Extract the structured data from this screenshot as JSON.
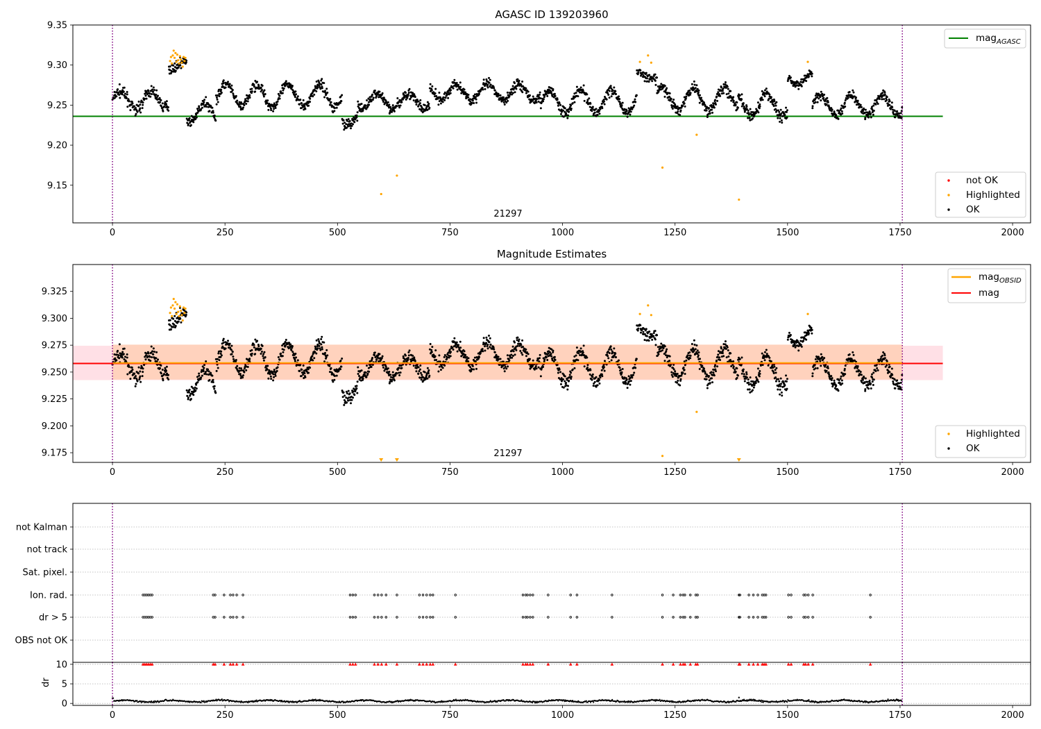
{
  "figure": {
    "colors": {
      "ok": "#000000",
      "highlighted": "#ffa500",
      "not_ok": "#ff0000",
      "agasc_line": "#008000",
      "mag_line": "#ff0000",
      "mag_obsid_line": "#ffa500",
      "band_outer": "#ffe0e6",
      "band_inner": "#ffd2bd",
      "obs_boundary": "#800080",
      "grid": "#b0b0b0"
    }
  },
  "chart_data": [
    {
      "type": "scatter",
      "title": "AGASC ID 139203960",
      "annotation": "21297",
      "xlim": [
        -88,
        2040
      ],
      "ylim": [
        9.103,
        9.35
      ],
      "xticks": [
        0,
        250,
        500,
        750,
        1000,
        1250,
        1500,
        1750,
        2000
      ],
      "yticks": [
        "9.15",
        "9.20",
        "9.25",
        "9.30",
        "9.35"
      ],
      "obs_boundaries": [
        0,
        1755
      ],
      "mag_agasc": 9.236,
      "mag_line_x_range": [
        -88,
        1845
      ],
      "legend_lines": [
        "mag_{AGASC}"
      ],
      "legend_points": [
        "not OK",
        "Highlighted",
        "OK"
      ],
      "series": [
        {
          "name": "OK",
          "segments": [
            {
              "x": [
                0,
                110
              ],
              "mean": 9.256,
              "amp": 0.011,
              "noise": 0.012
            },
            {
              "x": [
                110,
                125
              ],
              "mean": 9.243,
              "amp": 0.006,
              "noise": 0.01
            },
            {
              "x": [
                125,
                165
              ],
              "mean": 9.3,
              "amp": 0.005,
              "noise": 0.01
            },
            {
              "x": [
                165,
                230
              ],
              "mean": 9.24,
              "amp": 0.012,
              "noise": 0.012
            },
            {
              "x": [
                230,
                510
              ],
              "mean": 9.262,
              "amp": 0.014,
              "noise": 0.012
            },
            {
              "x": [
                510,
                545
              ],
              "mean": 9.235,
              "amp": 0.01,
              "noise": 0.012
            },
            {
              "x": [
                545,
                705
              ],
              "mean": 9.255,
              "amp": 0.01,
              "noise": 0.012
            },
            {
              "x": [
                705,
                950
              ],
              "mean": 9.266,
              "amp": 0.01,
              "noise": 0.011
            },
            {
              "x": [
                950,
                1165
              ],
              "mean": 9.255,
              "amp": 0.014,
              "noise": 0.013
            },
            {
              "x": [
                1165,
                1210
              ],
              "mean": 9.287,
              "amp": 0.006,
              "noise": 0.01
            },
            {
              "x": [
                1210,
                1390
              ],
              "mean": 9.258,
              "amp": 0.014,
              "noise": 0.013
            },
            {
              "x": [
                1390,
                1500
              ],
              "mean": 9.25,
              "amp": 0.014,
              "noise": 0.013
            },
            {
              "x": [
                1500,
                1555
              ],
              "mean": 9.283,
              "amp": 0.008,
              "noise": 0.01
            },
            {
              "x": [
                1555,
                1755
              ],
              "mean": 9.25,
              "amp": 0.012,
              "noise": 0.012
            }
          ]
        },
        {
          "name": "Highlighted",
          "points": [
            [
              128,
              9.305
            ],
            [
              130,
              9.31
            ],
            [
              132,
              9.302
            ],
            [
              134,
              9.312
            ],
            [
              136,
              9.318
            ],
            [
              138,
              9.309
            ],
            [
              140,
              9.315
            ],
            [
              142,
              9.304
            ],
            [
              144,
              9.313
            ],
            [
              146,
              9.306
            ],
            [
              148,
              9.302
            ],
            [
              150,
              9.311
            ],
            [
              152,
              9.307
            ],
            [
              154,
              9.303
            ],
            [
              156,
              9.298
            ],
            [
              158,
              9.31
            ],
            [
              160,
              9.305
            ],
            [
              162,
              9.309
            ],
            [
              1172,
              9.304
            ],
            [
              1190,
              9.312
            ],
            [
              1197,
              9.303
            ],
            [
              1545,
              9.304
            ],
            [
              597,
              9.139
            ],
            [
              632,
              9.162
            ],
            [
              1222,
              9.172
            ],
            [
              1298,
              9.213
            ],
            [
              1392,
              9.132
            ]
          ]
        }
      ]
    },
    {
      "type": "scatter",
      "title": "Magnitude Estimates",
      "annotation": "21297",
      "xlim": [
        -88,
        2040
      ],
      "ylim": [
        9.166,
        9.35
      ],
      "xticks": [
        0,
        250,
        500,
        750,
        1000,
        1250,
        1500,
        1750,
        2000
      ],
      "yticks": [
        "9.175",
        "9.200",
        "9.225",
        "9.250",
        "9.275",
        "9.300",
        "9.325"
      ],
      "obs_boundaries": [
        0,
        1755
      ],
      "mag": 9.258,
      "mag_obsid": 9.2585,
      "band_outer": [
        9.2425,
        9.2745
      ],
      "band_inner": [
        9.243,
        9.2755
      ],
      "legend_lines": [
        "mag_{OBSID}",
        "mag"
      ],
      "legend_points": [
        "Highlighted",
        "OK"
      ],
      "offscale_markers_x": [
        597,
        632,
        1392
      ]
    },
    {
      "type": "scatter",
      "xlim": [
        -88,
        2040
      ],
      "xticks": [
        0,
        250,
        500,
        750,
        1000,
        1250,
        1500,
        1750,
        2000
      ],
      "flag_labels": [
        "not Kalman",
        "not track",
        "Sat. pixel.",
        "Ion. rad.",
        "dr > 5",
        "OBS not OK"
      ],
      "flag_x": [
        68,
        72,
        76,
        80,
        84,
        88,
        224,
        228,
        248,
        262,
        268,
        276,
        290,
        528,
        534,
        540,
        582,
        590,
        598,
        608,
        632,
        682,
        690,
        698,
        706,
        712,
        762,
        912,
        918,
        922,
        928,
        934,
        968,
        1018,
        1032,
        1110,
        1222,
        1246,
        1262,
        1268,
        1272,
        1284,
        1296,
        1300,
        1392,
        1394,
        1414,
        1424,
        1434,
        1444,
        1448,
        1452,
        1502,
        1508,
        1536,
        1540,
        1546,
        1556,
        1684
      ],
      "dr_label": "dr",
      "dr_yticks": [
        "0",
        "5",
        "10"
      ],
      "dr_ylim": [
        -0.5,
        10.5
      ],
      "dr_mean": 0.6
    }
  ]
}
